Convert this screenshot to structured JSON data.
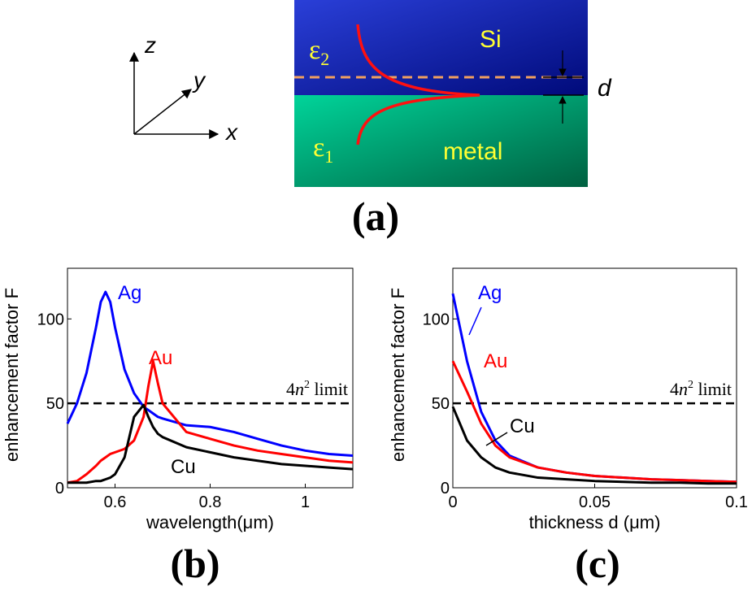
{
  "diagram": {
    "axes": {
      "z": "z",
      "y": "y",
      "x": "x"
    },
    "eps2": {
      "symbol": "ε",
      "sub": "2"
    },
    "eps1": {
      "symbol": "ε",
      "sub": "1"
    },
    "top_material": "Si",
    "bottom_material": "metal",
    "gap": "d",
    "panel": "(a)"
  },
  "chart_data": [
    {
      "type": "line",
      "panel": "(b)",
      "xlabel": "wavelength(μm)",
      "ylabel": "enhancement factor F",
      "xlim": [
        0.5,
        1.1
      ],
      "ylim": [
        0,
        130
      ],
      "xticks": [
        0.6,
        0.8,
        1
      ],
      "yticks": [
        0,
        50,
        100
      ],
      "x": [
        0.5,
        0.52,
        0.54,
        0.56,
        0.57,
        0.58,
        0.59,
        0.6,
        0.62,
        0.64,
        0.66,
        0.67,
        0.68,
        0.69,
        0.7,
        0.75,
        0.8,
        0.85,
        0.9,
        0.95,
        1.0,
        1.05,
        1.1
      ],
      "series": [
        {
          "name": "Ag",
          "color": "#0000ff",
          "values": [
            38,
            50,
            68,
            95,
            110,
            116,
            110,
            95,
            70,
            56,
            48,
            46,
            44,
            42,
            41,
            37,
            36,
            33,
            29,
            25,
            22,
            20,
            19
          ]
        },
        {
          "name": "Au",
          "color": "#ff0000",
          "values": [
            3,
            4,
            8,
            13,
            16,
            18,
            20,
            21,
            23,
            28,
            42,
            60,
            75,
            62,
            50,
            33,
            29,
            25,
            22,
            20,
            18,
            16,
            15
          ]
        },
        {
          "name": "Cu",
          "color": "#000000",
          "values": [
            3,
            3,
            3,
            4,
            4,
            5,
            6,
            8,
            18,
            42,
            49,
            42,
            36,
            32,
            30,
            24,
            21,
            18,
            16,
            14,
            13,
            12,
            11
          ]
        }
      ],
      "reference_line": {
        "value": 50,
        "label": {
          "coef": "4",
          "var": "n",
          "exp": "2",
          "word": " limit"
        }
      }
    },
    {
      "type": "line",
      "panel": "(c)",
      "xlabel": "thickness d (μm)",
      "ylabel": "enhancement factor F",
      "xlim": [
        0,
        0.1
      ],
      "ylim": [
        0,
        130
      ],
      "xticks": [
        0,
        0.05,
        0.1
      ],
      "yticks": [
        0,
        50,
        100
      ],
      "x": [
        0,
        0.005,
        0.01,
        0.015,
        0.02,
        0.03,
        0.04,
        0.05,
        0.06,
        0.07,
        0.08,
        0.09,
        0.1
      ],
      "series": [
        {
          "name": "Ag",
          "color": "#0000ff",
          "values": [
            115,
            75,
            45,
            28,
            19,
            12,
            9,
            7,
            6,
            5,
            4.5,
            4,
            3.5
          ]
        },
        {
          "name": "Au",
          "color": "#ff0000",
          "values": [
            75,
            57,
            38,
            25,
            18,
            12,
            9,
            7,
            6,
            5,
            4.5,
            4,
            3.5
          ]
        },
        {
          "name": "Cu",
          "color": "#000000",
          "values": [
            48,
            28,
            18,
            12,
            9,
            6,
            5,
            4,
            3.5,
            3,
            3,
            2.5,
            2.5
          ]
        }
      ],
      "reference_line": {
        "value": 50,
        "label": {
          "coef": "4",
          "var": "n",
          "exp": "2",
          "word": " limit"
        }
      }
    }
  ]
}
